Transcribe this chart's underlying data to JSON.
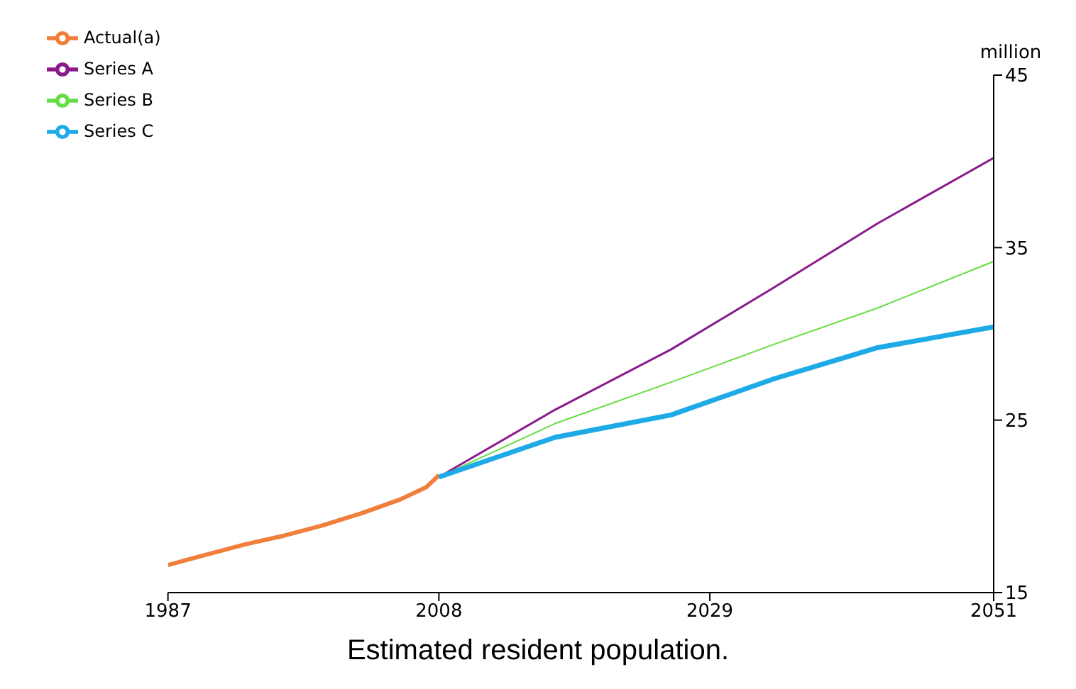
{
  "chart_data": {
    "type": "line",
    "title": "Estimated resident population.",
    "ylabel": "million",
    "xlim": [
      1987,
      2051
    ],
    "xticks": [
      1987,
      2008,
      2029,
      2051
    ],
    "ylim": [
      15,
      45
    ],
    "yticks": [
      15,
      25,
      35,
      45
    ],
    "grid": false,
    "legend": "top left",
    "marker": "none",
    "line_style": "solid",
    "series": [
      {
        "name": "Actual(a)",
        "color": "#f07f3c",
        "x": [
          1987,
          1990,
          1993,
          1996,
          1999,
          2002,
          2005,
          2007,
          2008
        ],
        "values": [
          16.6,
          17.2,
          17.8,
          18.3,
          18.9,
          19.6,
          20.4,
          21.1,
          21.8
        ]
      },
      {
        "name": "Series A",
        "color": "#8b1a8b",
        "x": [
          2008,
          2017,
          2026,
          2034,
          2042,
          2051
        ],
        "values": [
          21.7,
          25.6,
          29.1,
          32.7,
          36.4,
          40.2
        ]
      },
      {
        "name": "Series B",
        "color": "#66dd44",
        "x": [
          2008,
          2017,
          2026,
          2034,
          2042,
          2051
        ],
        "values": [
          21.7,
          24.8,
          27.2,
          29.4,
          31.5,
          34.2
        ]
      },
      {
        "name": "Series C",
        "color": "#1eaae6",
        "x": [
          2008,
          2017,
          2026,
          2034,
          2042,
          2051
        ],
        "values": [
          21.7,
          24.0,
          25.3,
          27.4,
          29.2,
          30.4
        ]
      }
    ]
  }
}
